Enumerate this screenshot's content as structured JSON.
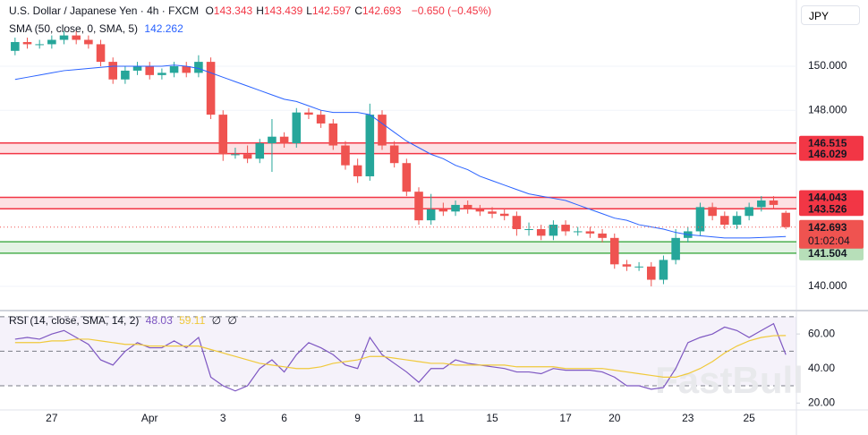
{
  "chart_data": [
    {
      "type": "candlestick",
      "title": "U.S. Dollar / Japanese Yen · 4h · FXCM",
      "currency": "JPY",
      "ohlc_letters": [
        "O",
        "H",
        "L",
        "C"
      ],
      "change": "−0.650 (−0.45%)",
      "countdown": "01:02:04",
      "up_color": "#26a69a",
      "down_color": "#ef5350",
      "categories": [
        null,
        null,
        null,
        "27",
        null,
        null,
        null,
        null,
        null,
        null,
        null,
        "Apr",
        null,
        null,
        null,
        null,
        null,
        "3",
        null,
        null,
        null,
        null,
        "6",
        null,
        null,
        null,
        null,
        null,
        "9",
        null,
        null,
        null,
        null,
        "11",
        null,
        null,
        null,
        null,
        null,
        "15",
        null,
        null,
        null,
        null,
        null,
        "17",
        null,
        null,
        null,
        "20",
        null,
        null,
        null,
        null,
        null,
        "23",
        null,
        null,
        null,
        null,
        "25",
        null,
        null,
        null
      ],
      "open": [
        150.7,
        151.1,
        151.0,
        151.0,
        151.2,
        151.4,
        151.2,
        151.0,
        150.2,
        149.4,
        149.8,
        150.0,
        149.6,
        149.7,
        150.0,
        149.7,
        150.2,
        147.8,
        146.0,
        146.0,
        145.8,
        146.5,
        146.8,
        146.5,
        147.9,
        147.8,
        147.4,
        146.4,
        145.5,
        145.0,
        147.8,
        146.4,
        145.6,
        144.3,
        143.0,
        143.5,
        143.4,
        143.7,
        143.5,
        143.4,
        143.3,
        143.2,
        142.6,
        142.6,
        142.3,
        142.8,
        142.5,
        142.5,
        142.4,
        142.2,
        141.0,
        140.9,
        140.9,
        140.3,
        141.2,
        142.2,
        142.5,
        143.6,
        143.2,
        142.8,
        143.2,
        143.6,
        143.9,
        143.343
      ],
      "high": [
        151.3,
        151.3,
        151.2,
        151.4,
        151.6,
        151.6,
        151.4,
        151.2,
        150.4,
        150.0,
        150.2,
        150.2,
        149.9,
        150.2,
        150.2,
        150.5,
        150.4,
        148.0,
        146.3,
        146.4,
        146.7,
        147.6,
        147.0,
        148.1,
        148.1,
        148.0,
        147.6,
        146.6,
        145.8,
        148.3,
        148.0,
        146.6,
        145.8,
        144.5,
        144.2,
        143.8,
        143.9,
        143.9,
        143.7,
        143.6,
        143.5,
        143.4,
        142.9,
        142.8,
        143.0,
        143.0,
        142.7,
        142.7,
        142.6,
        142.4,
        141.2,
        141.1,
        141.1,
        141.4,
        142.6,
        142.7,
        143.8,
        143.8,
        143.4,
        143.4,
        143.8,
        144.1,
        144.1,
        143.439
      ],
      "low": [
        150.5,
        150.8,
        150.8,
        150.8,
        151.0,
        151.0,
        150.8,
        150.0,
        149.2,
        149.2,
        149.6,
        149.4,
        149.4,
        149.5,
        149.5,
        149.5,
        147.6,
        145.7,
        145.8,
        145.6,
        145.6,
        145.2,
        146.3,
        146.3,
        147.6,
        147.2,
        146.2,
        145.3,
        144.7,
        144.8,
        146.2,
        145.4,
        144.1,
        142.8,
        142.8,
        143.2,
        143.2,
        143.3,
        143.2,
        143.1,
        143.0,
        142.3,
        142.3,
        142.1,
        142.1,
        142.3,
        142.3,
        142.2,
        142.0,
        140.8,
        140.7,
        140.7,
        140.0,
        140.1,
        141.0,
        142.0,
        142.3,
        143.0,
        142.6,
        142.6,
        143.0,
        143.4,
        143.5,
        142.597
      ],
      "close": [
        151.1,
        151.0,
        151.0,
        151.2,
        151.4,
        151.2,
        151.0,
        150.2,
        149.4,
        149.8,
        150.0,
        149.6,
        149.7,
        150.0,
        149.7,
        150.2,
        147.8,
        146.0,
        146.0,
        145.8,
        146.5,
        146.8,
        146.5,
        147.9,
        147.8,
        147.4,
        146.4,
        145.5,
        145.0,
        147.8,
        146.4,
        145.6,
        144.3,
        143.0,
        143.5,
        143.4,
        143.7,
        143.5,
        143.4,
        143.3,
        143.2,
        142.6,
        142.6,
        142.3,
        142.8,
        142.5,
        142.5,
        142.4,
        142.2,
        141.0,
        140.9,
        140.9,
        140.3,
        141.2,
        142.2,
        142.5,
        143.6,
        143.2,
        142.8,
        143.2,
        143.6,
        143.9,
        143.7,
        142.693
      ],
      "series": [
        {
          "name": "SMA (50, close, 0, SMA, 5)",
          "color": "#2962ff",
          "values": [
            149.4,
            149.5,
            149.6,
            149.7,
            149.8,
            149.85,
            149.9,
            149.95,
            150.0,
            150.0,
            150.0,
            150.0,
            150.0,
            150.05,
            150.0,
            149.9,
            149.7,
            149.5,
            149.3,
            149.1,
            148.9,
            148.7,
            148.5,
            148.4,
            148.2,
            148.0,
            147.9,
            147.9,
            147.9,
            147.8,
            147.4,
            147.0,
            146.6,
            146.3,
            146.0,
            145.8,
            145.5,
            145.3,
            145.0,
            144.8,
            144.6,
            144.4,
            144.2,
            144.1,
            144.0,
            143.9,
            143.7,
            143.5,
            143.3,
            143.1,
            143.0,
            142.8,
            142.7,
            142.6,
            142.45,
            142.35,
            142.3,
            142.25,
            142.2,
            142.2,
            142.2,
            142.22,
            142.24,
            142.262
          ]
        }
      ],
      "zones": [
        {
          "low": 146.029,
          "high": 146.515,
          "color": "#f23645"
        },
        {
          "low": 143.526,
          "high": 144.043,
          "color": "#f23645"
        },
        {
          "low": 141.504,
          "high": 142.027,
          "color": "#4caf50"
        }
      ],
      "ylim": [
        138.98,
        153.01
      ],
      "yticks": [
        {
          "value": 150,
          "label": "150.000"
        },
        {
          "value": 148,
          "label": "148.000"
        },
        {
          "value": 140,
          "label": "140.000"
        }
      ]
    },
    {
      "type": "line",
      "title": "RSI (14, close, SMA, 14, 2)",
      "na_values": [
        "∅",
        "∅"
      ],
      "series": [
        {
          "color": "#7e57c2",
          "values": [
            57,
            58,
            57,
            60,
            62,
            58,
            54,
            45,
            42,
            50,
            55,
            52,
            52,
            56,
            52,
            58,
            35,
            30,
            27,
            30,
            40,
            45,
            38,
            48,
            55,
            52,
            48,
            42,
            40,
            58,
            48,
            43,
            38,
            32,
            40,
            40,
            45,
            43,
            42,
            41,
            40,
            38,
            38,
            37,
            40,
            39,
            39,
            39,
            38,
            35,
            30,
            30,
            28,
            29,
            40,
            55,
            58,
            60,
            64,
            62,
            58,
            62,
            66,
            48.03
          ]
        },
        {
          "color": "#f0c93a",
          "values": [
            55,
            55,
            55,
            56,
            56,
            57,
            57,
            56,
            55,
            54,
            54,
            53,
            53,
            53,
            53,
            53,
            51,
            49,
            47,
            45,
            43,
            42,
            41,
            40,
            40,
            41,
            43,
            44,
            45,
            47,
            47,
            46,
            45,
            44,
            43,
            43,
            42,
            42,
            42,
            42,
            42,
            41,
            41,
            41,
            41,
            40,
            40,
            40,
            40,
            39,
            38,
            37,
            36,
            35,
            35,
            37,
            40,
            44,
            49,
            53,
            56,
            58,
            59,
            59.11
          ]
        }
      ],
      "bands": [
        70,
        50,
        30
      ],
      "ylim": [
        16,
        72
      ],
      "yticks": [
        {
          "value": 60,
          "label": "60.00"
        },
        {
          "value": 40,
          "label": "40.00"
        },
        {
          "value": 20,
          "label": "20.00"
        }
      ]
    }
  ],
  "watermark": "FastBull"
}
